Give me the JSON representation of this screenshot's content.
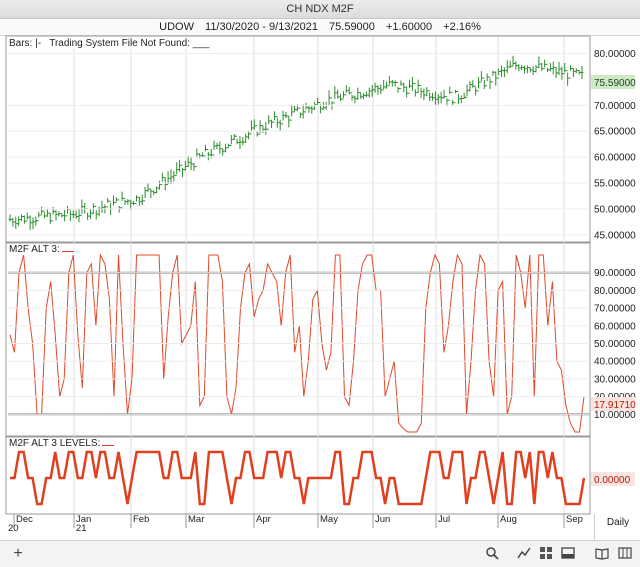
{
  "window": {
    "title": "CH NDX M2F"
  },
  "info": {
    "symbol": "UDOW",
    "range": "11/30/2020 - 9/13/2021",
    "price": "75.59000",
    "change": "+1.60000",
    "change_pct": "+2.16%"
  },
  "price_panel": {
    "label_bars": "Bars: |-",
    "label_system": "Trading System File Not Found: ___",
    "axis_labels": [
      "80.00000",
      "70.00000",
      "65.00000",
      "60.00000",
      "55.00000",
      "50.00000",
      "45.00000"
    ],
    "current_tag": "75.59000"
  },
  "osc_panel": {
    "label": "M2F ALT 3:",
    "axis_labels": [
      "90.00000",
      "80.00000",
      "70.00000",
      "60.00000",
      "50.00000",
      "40.00000",
      "30.00000",
      "20.00000",
      "10.00000"
    ],
    "current_tag": "17.91710"
  },
  "levels_panel": {
    "label": "M2F ALT 3 LEVELS:",
    "current_tag": "0.00000"
  },
  "x_axis": {
    "months": [
      "Dec",
      "Jan",
      "Feb",
      "Mar",
      "Apr",
      "May",
      "Jun",
      "Jul",
      "Aug",
      "Sep"
    ],
    "years": [
      "20",
      "21"
    ],
    "timeframe": "Daily"
  },
  "colors": {
    "up_bar": "#2e8b2e",
    "oscillator": "#e0482a",
    "levels": "#e0401e",
    "threshold": "#888888",
    "price_tag_bg": "#cfe8c8",
    "osc_tag_bg": "#fbe3df"
  },
  "toolbar": {
    "add_icon": "plus-icon",
    "search_icon": "magnifier-icon",
    "chart_icon": "line-chart-icon",
    "grid_icon": "grid-icon",
    "window_icon": "panel-icon",
    "book_icon": "book-icon",
    "layout_icon": "columns-icon"
  },
  "chart_data": [
    {
      "type": "bar",
      "name": "UDOW OHLC",
      "x": [
        "Dec",
        "Jan",
        "Feb",
        "Mar",
        "Apr",
        "May",
        "Jun",
        "Jul",
        "Aug",
        "Sep"
      ],
      "close": [
        48.0,
        49.0,
        52.0,
        60.0,
        66.0,
        71.0,
        74.0,
        71.5,
        78.0,
        75.59
      ],
      "ylim": [
        44,
        83
      ]
    },
    {
      "type": "line",
      "name": "M2F ALT 3",
      "values": [
        55,
        45,
        90,
        100,
        70,
        50,
        10,
        10,
        70,
        85,
        55,
        20,
        30,
        90,
        100,
        55,
        25,
        90,
        95,
        60,
        100,
        95,
        75,
        20,
        100,
        50,
        10,
        30,
        100,
        100,
        100,
        100,
        100,
        100,
        30,
        65,
        90,
        100,
        50,
        55,
        60,
        85,
        15,
        20,
        100,
        100,
        100,
        85,
        20,
        10,
        25,
        70,
        90,
        95,
        65,
        75,
        80,
        95,
        90,
        85,
        60,
        90,
        100,
        45,
        60,
        20,
        40,
        75,
        80,
        50,
        35,
        45,
        100,
        100,
        20,
        15,
        40,
        80,
        95,
        100,
        100,
        80,
        80,
        20,
        30,
        40,
        5,
        2,
        0,
        0,
        0,
        5,
        70,
        90,
        100,
        95,
        45,
        60,
        85,
        100,
        95,
        10,
        40,
        80,
        100,
        95,
        40,
        20,
        80,
        85,
        10,
        20,
        100,
        90,
        70,
        100,
        20,
        100,
        100,
        60,
        85,
        40,
        35,
        15,
        5,
        0,
        0,
        20
      ],
      "thresholds": [
        90,
        10
      ],
      "ylim": [
        0,
        100
      ]
    },
    {
      "type": "line",
      "name": "M2F ALT 3 LEVELS",
      "values": [
        0,
        0,
        1,
        1,
        0,
        0,
        -1,
        -1,
        0,
        0,
        1,
        0,
        0,
        1,
        1,
        0,
        0,
        1,
        1,
        0,
        1,
        1,
        0,
        0,
        1,
        0,
        -1,
        0,
        1,
        1,
        1,
        1,
        1,
        1,
        0,
        0,
        1,
        1,
        0,
        0,
        0,
        1,
        -1,
        -1,
        1,
        1,
        1,
        1,
        0,
        -1,
        0,
        0,
        1,
        1,
        0,
        0,
        0,
        1,
        1,
        1,
        0,
        1,
        1,
        0,
        0,
        -1,
        0,
        0,
        0,
        0,
        0,
        0,
        1,
        1,
        -1,
        -1,
        0,
        0,
        1,
        1,
        1,
        0,
        0,
        -1,
        0,
        0,
        -1,
        -1,
        -1,
        -1,
        -1,
        -1,
        0,
        1,
        1,
        1,
        0,
        0,
        1,
        1,
        1,
        -1,
        0,
        0,
        1,
        1,
        0,
        -1,
        0,
        1,
        -1,
        -1,
        1,
        1,
        0,
        1,
        -1,
        1,
        1,
        0,
        1,
        0,
        0,
        -1,
        -1,
        -1,
        -1,
        0
      ],
      "ylim": [
        -1.4,
        1.4
      ]
    }
  ]
}
